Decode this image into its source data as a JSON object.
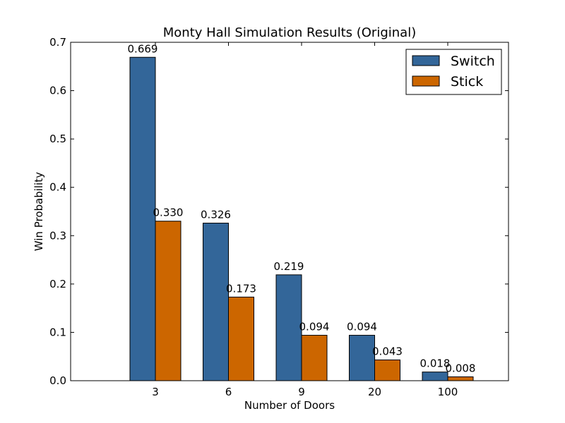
{
  "chart_data": {
    "type": "bar",
    "title": "Monty Hall Simulation Results (Original)",
    "xlabel": "Number of Doors",
    "ylabel": "Win Probability",
    "categories": [
      "3",
      "6",
      "9",
      "20",
      "100"
    ],
    "ylim": [
      0,
      0.7
    ],
    "yticks": [
      "0.0",
      "0.1",
      "0.2",
      "0.3",
      "0.4",
      "0.5",
      "0.6",
      "0.7"
    ],
    "series": [
      {
        "name": "Switch",
        "color": "#336699",
        "values": [
          0.669,
          0.326,
          0.219,
          0.094,
          0.018
        ],
        "labels": [
          "0.669",
          "0.326",
          "0.219",
          "0.094",
          "0.018"
        ]
      },
      {
        "name": "Stick",
        "color": "#cc6600",
        "values": [
          0.33,
          0.173,
          0.094,
          0.043,
          0.008
        ],
        "labels": [
          "0.330",
          "0.173",
          "0.094",
          "0.043",
          "0.008"
        ]
      }
    ],
    "legend": "top-right",
    "grid": false
  }
}
